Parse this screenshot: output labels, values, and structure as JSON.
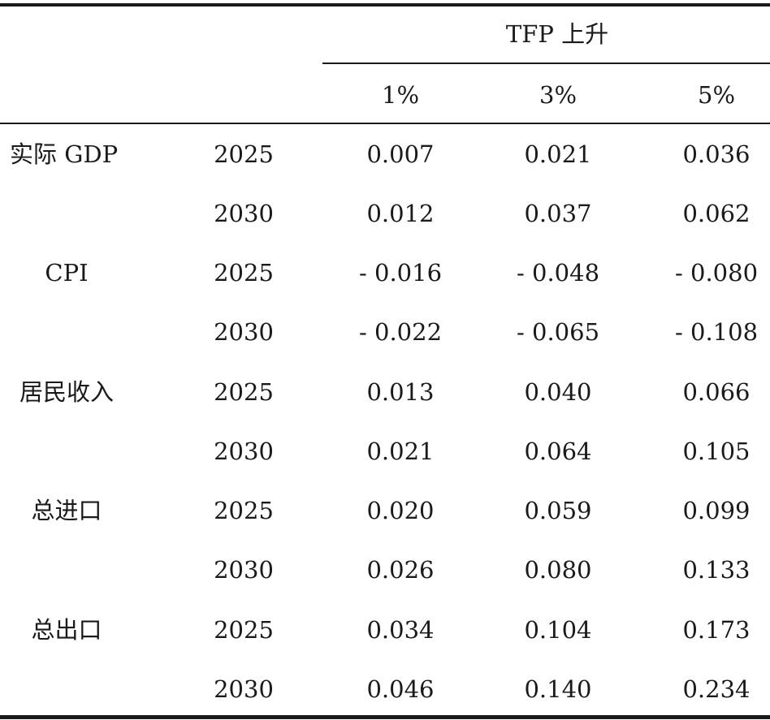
{
  "table": {
    "group_header": "TFP 上升",
    "columns": [
      "1%",
      "3%",
      "5%"
    ],
    "rows": [
      {
        "indicator": "实际 GDP",
        "year": "2025",
        "values": [
          "0.007",
          "0.021",
          "0.036"
        ]
      },
      {
        "indicator": "",
        "year": "2030",
        "values": [
          "0.012",
          "0.037",
          "0.062"
        ]
      },
      {
        "indicator": "CPI",
        "year": "2025",
        "values": [
          "- 0.016",
          "- 0.048",
          "- 0.080"
        ]
      },
      {
        "indicator": "",
        "year": "2030",
        "values": [
          "- 0.022",
          "- 0.065",
          "- 0.108"
        ]
      },
      {
        "indicator": "居民收入",
        "year": "2025",
        "values": [
          "0.013",
          "0.040",
          "0.066"
        ]
      },
      {
        "indicator": "",
        "year": "2030",
        "values": [
          "0.021",
          "0.064",
          "0.105"
        ]
      },
      {
        "indicator": "总进口",
        "year": "2025",
        "values": [
          "0.020",
          "0.059",
          "0.099"
        ]
      },
      {
        "indicator": "",
        "year": "2030",
        "values": [
          "0.026",
          "0.080",
          "0.133"
        ]
      },
      {
        "indicator": "总出口",
        "year": "2025",
        "values": [
          "0.034",
          "0.104",
          "0.173"
        ]
      },
      {
        "indicator": "",
        "year": "2030",
        "values": [
          "0.046",
          "0.140",
          "0.234"
        ]
      }
    ]
  }
}
